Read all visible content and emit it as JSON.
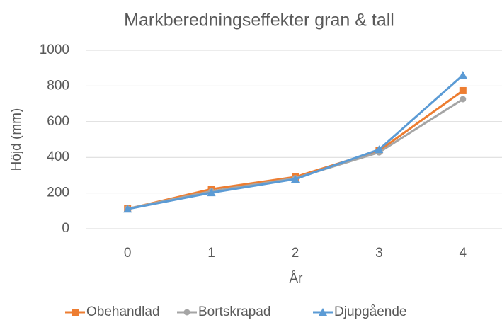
{
  "chart_data": {
    "type": "line",
    "title": "Markberedningseffekter gran & tall",
    "xlabel": "År",
    "ylabel": "Höjd (mm)",
    "categories": [
      "0",
      "1",
      "2",
      "3",
      "4"
    ],
    "series": [
      {
        "name": "Obehandlad",
        "color": "#ed7d31",
        "marker": "square",
        "values": [
          111,
          222,
          290,
          437,
          774
        ]
      },
      {
        "name": "Bortskrapad",
        "color": "#a5a5a5",
        "marker": "circle",
        "values": [
          112,
          210,
          283,
          428,
          726
        ]
      },
      {
        "name": "Djupgående",
        "color": "#5b9bd5",
        "marker": "triangle",
        "values": [
          110,
          202,
          278,
          444,
          861
        ]
      }
    ],
    "ylim": [
      0,
      1000
    ],
    "yticks": [
      0,
      200,
      400,
      600,
      800,
      1000
    ],
    "grid": true,
    "legend": "bottom"
  }
}
